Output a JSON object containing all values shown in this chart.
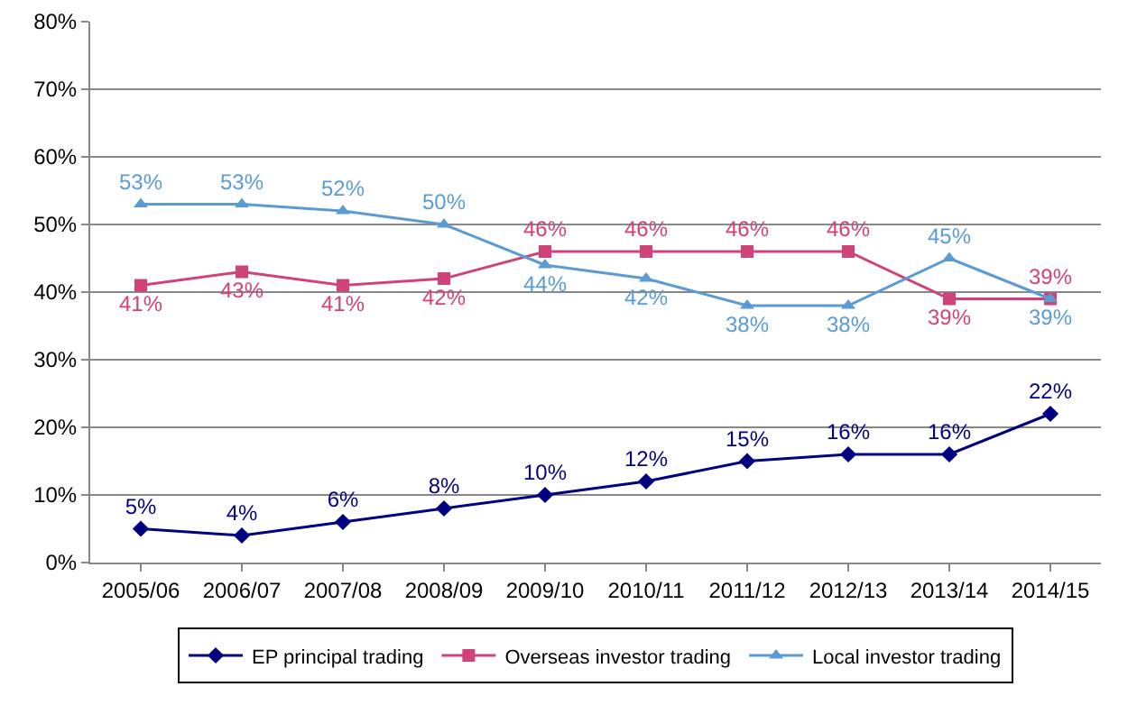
{
  "chart_data": {
    "type": "line",
    "categories": [
      "2005/06",
      "2006/07",
      "2007/08",
      "2008/09",
      "2009/10",
      "2010/11",
      "2011/12",
      "2012/13",
      "2013/14",
      "2014/15"
    ],
    "series": [
      {
        "name": "EP principal trading",
        "color": "#000080",
        "marker": "diamond",
        "values": [
          5,
          4,
          6,
          8,
          10,
          12,
          15,
          16,
          16,
          22
        ],
        "value_labels": [
          "5%",
          "4%",
          "6%",
          "8%",
          "10%",
          "12%",
          "15%",
          "16%",
          "16%",
          "22%"
        ]
      },
      {
        "name": "Overseas investor trading",
        "color": "#d0427a",
        "marker": "square",
        "values": [
          41,
          43,
          41,
          42,
          46,
          46,
          46,
          46,
          39,
          39
        ],
        "value_labels": [
          "41%",
          "43%",
          "41%",
          "42%",
          "46%",
          "46%",
          "46%",
          "46%",
          "39%",
          "39%"
        ]
      },
      {
        "name": "Local investor trading",
        "color": "#5b9bd5",
        "marker": "triangle",
        "values": [
          53,
          53,
          52,
          50,
          44,
          42,
          38,
          38,
          45,
          39
        ],
        "value_labels": [
          "53%",
          "53%",
          "52%",
          "50%",
          "44%",
          "42%",
          "38%",
          "38%",
          "45%",
          "39%"
        ]
      }
    ],
    "ylim": [
      0,
      80
    ],
    "yticks": [
      {
        "value": 0,
        "label": "0%"
      },
      {
        "value": 10,
        "label": "10%"
      },
      {
        "value": 20,
        "label": "20%"
      },
      {
        "value": 30,
        "label": "30%"
      },
      {
        "value": 40,
        "label": "40%"
      },
      {
        "value": 50,
        "label": "50%"
      },
      {
        "value": 60,
        "label": "60%"
      },
      {
        "value": 70,
        "label": "70%"
      },
      {
        "value": 80,
        "label": "80%"
      }
    ],
    "grid": "y",
    "legend": "bottom",
    "line_style": "solid"
  }
}
